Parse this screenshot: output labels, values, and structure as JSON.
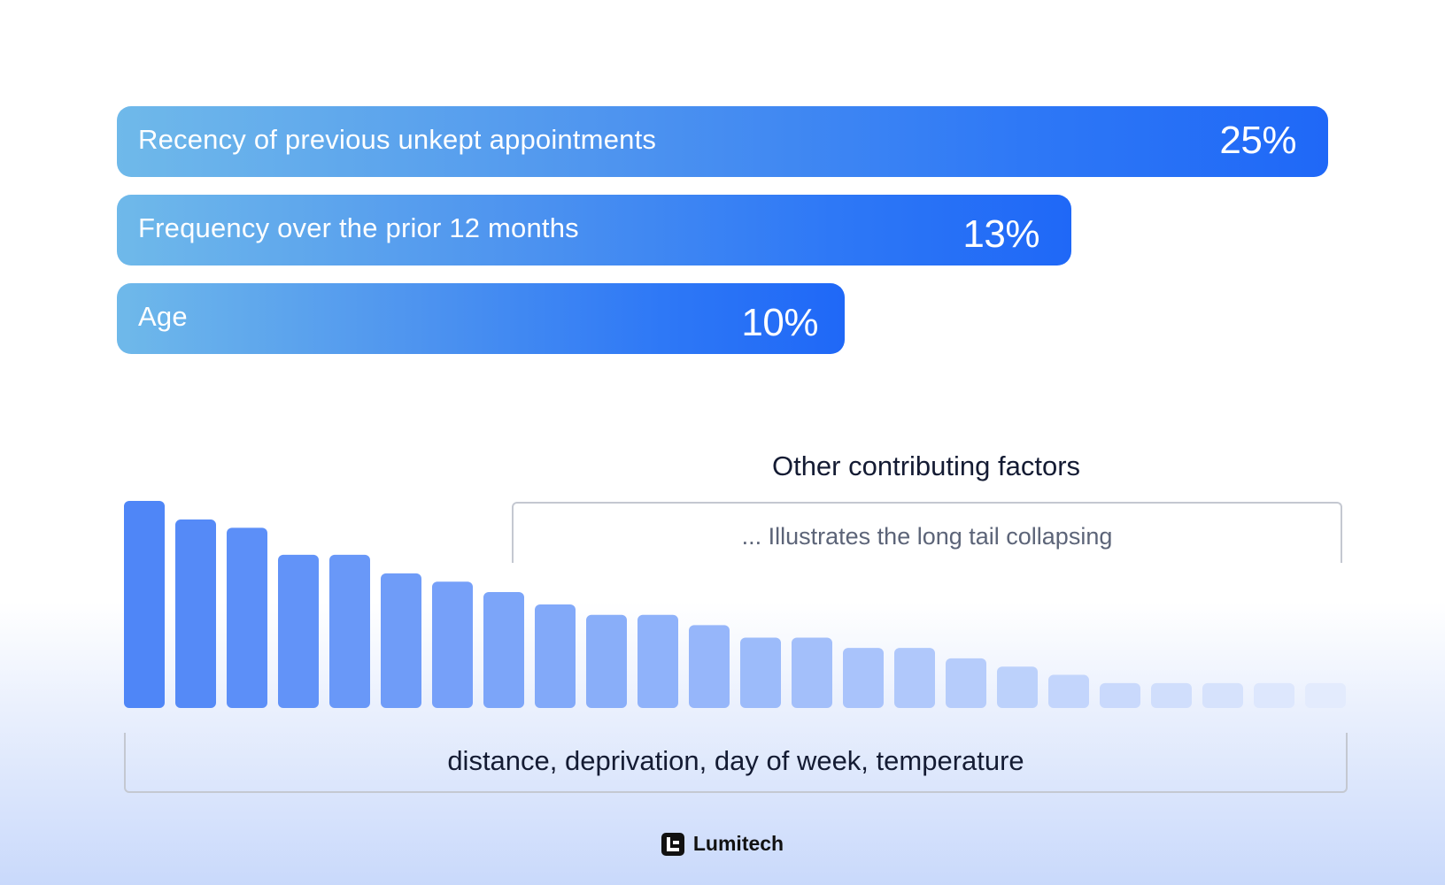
{
  "chart_data": [
    {
      "type": "bar",
      "orientation": "horizontal",
      "categories": [
        "Recency of previous unkept appointments",
        "Frequency over the prior 12 months",
        "Age"
      ],
      "values": [
        25,
        13,
        10
      ],
      "value_labels": [
        "25%",
        "13%",
        "10%"
      ],
      "unit": "%"
    },
    {
      "type": "bar",
      "title": "Other contributing factors",
      "relative_values": [
        1.0,
        0.91,
        0.87,
        0.74,
        0.74,
        0.65,
        0.61,
        0.56,
        0.5,
        0.45,
        0.45,
        0.4,
        0.34,
        0.34,
        0.29,
        0.29,
        0.24,
        0.2,
        0.16,
        0.12,
        0.12,
        0.12,
        0.12,
        0.12
      ],
      "bar_color_start": "#4f86f7",
      "bar_color_end": "#e3ebfd",
      "annotation": "... Illustrates the long tail collapsing",
      "footer": "distance, deprivation, day of week, temperature"
    }
  ],
  "brand": {
    "name": "Lumitech",
    "icon": "lumitech-logo-icon"
  }
}
